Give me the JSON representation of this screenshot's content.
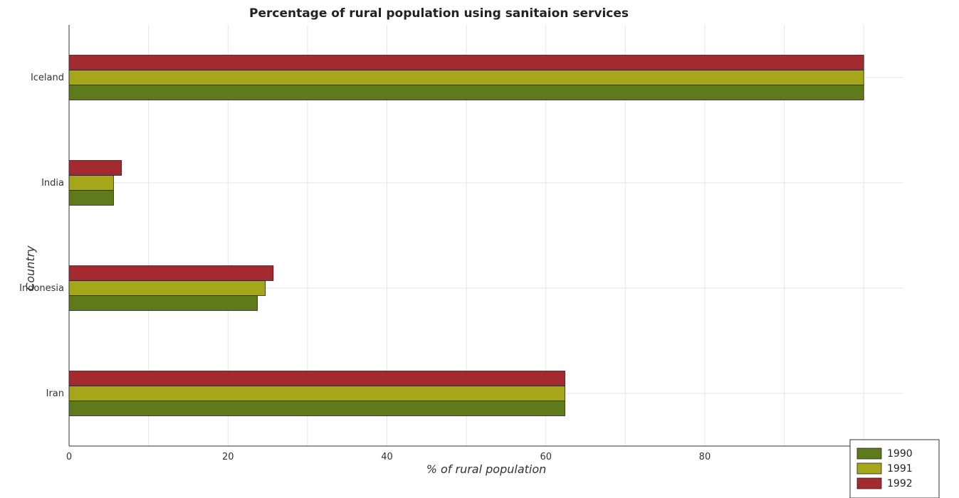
{
  "chart_data": {
    "type": "bar",
    "orientation": "horizontal",
    "title": "Percentage of rural population using sanitaion services",
    "xlabel": "% of rural population",
    "ylabel": "Country",
    "categories": [
      "Iceland",
      "India",
      "Indonesia",
      "Iran"
    ],
    "series": [
      {
        "name": "1990",
        "color": "#5f7a1a",
        "values": [
          100,
          5.6,
          23.7,
          62.4
        ]
      },
      {
        "name": "1991",
        "color": "#a5a619",
        "values": [
          100,
          5.6,
          24.7,
          62.4
        ]
      },
      {
        "name": "1992",
        "color": "#a32a2e",
        "values": [
          100,
          6.6,
          25.7,
          62.4
        ]
      }
    ],
    "xlim": [
      0,
      105
    ],
    "xticks": [
      0,
      20,
      40,
      60,
      80,
      100
    ],
    "grid": true,
    "legend_position": "bottom-right"
  }
}
